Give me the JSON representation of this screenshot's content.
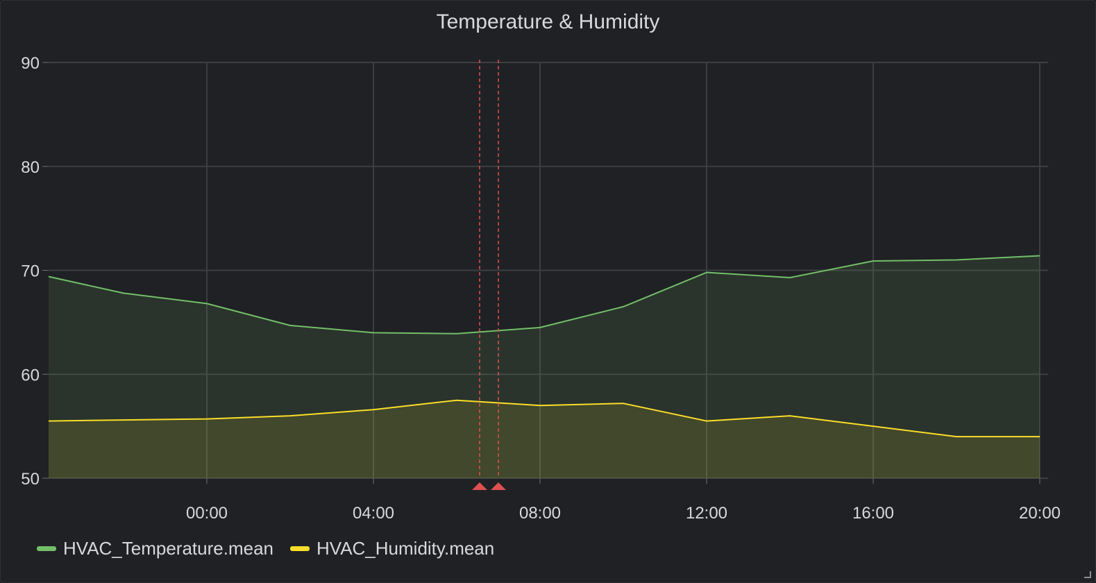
{
  "panel": {
    "title": "Temperature & Humidity"
  },
  "chart_data": {
    "type": "area",
    "title": "Temperature & Humidity",
    "xlabel": "",
    "ylabel": "",
    "x_domain_hours": [
      -3.8,
      20.2
    ],
    "ylim": [
      50,
      90
    ],
    "y_ticks": [
      50,
      60,
      70,
      80,
      90
    ],
    "x_ticks": [
      {
        "hour": 0,
        "label": "00:00"
      },
      {
        "hour": 4,
        "label": "04:00"
      },
      {
        "hour": 8,
        "label": "08:00"
      },
      {
        "hour": 12,
        "label": "12:00"
      },
      {
        "hour": 16,
        "label": "16:00"
      },
      {
        "hour": 20,
        "label": "20:00"
      }
    ],
    "grid": true,
    "legend_position": "bottom-left",
    "series": [
      {
        "name": "HVAC_Temperature.mean",
        "color": "#73bf69",
        "x": [
          "-03:45",
          "-02:00",
          "00:00",
          "02:00",
          "04:00",
          "06:00",
          "08:00",
          "10:00",
          "12:00",
          "14:00",
          "16:00",
          "18:00",
          "20:00"
        ],
        "values": [
          69.4,
          67.8,
          66.8,
          64.7,
          64.0,
          63.9,
          64.5,
          66.5,
          69.8,
          69.3,
          70.9,
          71.0,
          71.4
        ]
      },
      {
        "name": "HVAC_Humidity.mean",
        "color": "#fade2a",
        "x": [
          "-03:45",
          "-02:00",
          "00:00",
          "02:00",
          "04:00",
          "06:00",
          "08:00",
          "10:00",
          "12:00",
          "14:00",
          "16:00",
          "18:00",
          "20:00"
        ],
        "values": [
          55.5,
          55.6,
          55.7,
          56.0,
          56.6,
          57.5,
          57.0,
          57.2,
          55.5,
          56.0,
          55.0,
          54.0,
          54.0
        ]
      }
    ],
    "annotations": [
      {
        "hour": 6.55,
        "color": "#e05050"
      },
      {
        "hour": 7.0,
        "color": "#e05050"
      }
    ]
  }
}
